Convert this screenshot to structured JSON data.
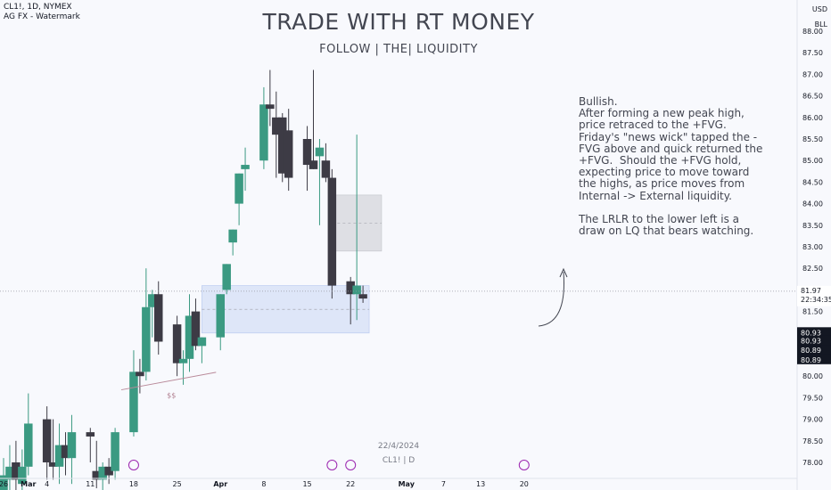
{
  "header": {
    "symbol_line": "CL1!, 1D, NYMEX",
    "indicator_line": "AG FX - Watermark"
  },
  "watermark": {
    "title": "TRADE WITH RT MONEY",
    "subtitle": "FOLLOW   |   THE|   LIQUIDITY"
  },
  "price_scale": {
    "currency": "USD",
    "unit": "BLL",
    "current_price": "81.97",
    "countdown": "22:34:35",
    "right_labels": [
      "80.93",
      "80.93",
      "80.89",
      "80.89"
    ]
  },
  "bottom_stamp": {
    "date": "22/4/2024",
    "symbol": "CL1! | D"
  },
  "annotation": {
    "text": "Bullish.\nAfter forming a new peak high, price retraced to the +FVG.\nFriday's \"news wick\" tapped the -FVG above and quick returned the  +FVG.  Should the +FVG hold, expecting price to move toward the highs, as price moves from Internal -> External liquidity.\n\nThe LRLR to the lower left is a draw on LQ that bears watching.",
    "trendline_label": "$$"
  },
  "colors": {
    "bull": "#26a69a",
    "bull_body": "#3b9a82",
    "bear": "#3d3b45",
    "fvg_bull": "#c9d7f4",
    "fvg_bear": "#d3d4d8",
    "background": "#f8f9fd",
    "text": "#131722",
    "muted": "#787b86"
  },
  "chart_data": {
    "type": "candlestick",
    "y_axis": {
      "min": 77.7,
      "max": 88.1,
      "ticks": [
        "78.00",
        "78.50",
        "79.00",
        "79.50",
        "80.00",
        "80.50",
        "81.00",
        "81.50",
        "82.00",
        "82.50",
        "83.00",
        "83.50",
        "84.00",
        "84.50",
        "85.00",
        "85.50",
        "86.00",
        "86.50",
        "87.00",
        "87.50",
        "88.00"
      ]
    },
    "x_axis": {
      "labels": [
        "26",
        "Mar",
        "4",
        "11",
        "18",
        "25",
        "Apr",
        "8",
        "15",
        "22",
        "May",
        "7",
        "13",
        "20"
      ]
    },
    "candles": [
      {
        "date": "2024-02-26",
        "o": 77.2,
        "h": 78.1,
        "l": 76.9,
        "c": 77.7
      },
      {
        "date": "2024-02-27",
        "o": 77.6,
        "h": 78.4,
        "l": 77.2,
        "c": 77.9
      },
      {
        "date": "2024-02-28",
        "o": 78.0,
        "h": 78.5,
        "l": 77.3,
        "c": 77.6
      },
      {
        "date": "2024-02-29",
        "o": 77.5,
        "h": 78.3,
        "l": 77.0,
        "c": 77.9
      },
      {
        "date": "2024-03-01",
        "o": 77.9,
        "h": 79.6,
        "l": 77.7,
        "c": 78.9
      },
      {
        "date": "2024-03-04",
        "o": 79.0,
        "h": 79.3,
        "l": 77.6,
        "c": 78.0
      },
      {
        "date": "2024-03-05",
        "o": 78.0,
        "h": 79.0,
        "l": 77.6,
        "c": 77.9
      },
      {
        "date": "2024-03-06",
        "o": 77.9,
        "h": 78.9,
        "l": 77.5,
        "c": 78.4
      },
      {
        "date": "2024-03-07",
        "o": 78.4,
        "h": 78.7,
        "l": 77.7,
        "c": 78.1
      },
      {
        "date": "2024-03-08",
        "o": 78.1,
        "h": 79.1,
        "l": 77.5,
        "c": 78.7
      },
      {
        "date": "2024-03-11",
        "o": 78.7,
        "h": 78.8,
        "l": 78.0,
        "c": 78.6
      },
      {
        "date": "2024-03-12",
        "o": 77.8,
        "h": 78.5,
        "l": 77.4,
        "c": 77.6
      },
      {
        "date": "2024-03-13",
        "o": 77.6,
        "h": 78.0,
        "l": 77.3,
        "c": 77.9
      },
      {
        "date": "2024-03-14",
        "o": 77.9,
        "h": 78.1,
        "l": 77.5,
        "c": 77.7
      },
      {
        "date": "2024-03-15",
        "o": 77.8,
        "h": 78.8,
        "l": 77.6,
        "c": 78.7
      },
      {
        "date": "2024-03-18",
        "o": 78.7,
        "h": 80.6,
        "l": 78.6,
        "c": 80.1
      },
      {
        "date": "2024-03-19",
        "o": 80.1,
        "h": 80.4,
        "l": 79.6,
        "c": 80.0
      },
      {
        "date": "2024-03-20",
        "o": 80.1,
        "h": 82.5,
        "l": 79.9,
        "c": 81.6
      },
      {
        "date": "2024-03-21",
        "o": 81.6,
        "h": 82.0,
        "l": 80.9,
        "c": 81.9
      },
      {
        "date": "2024-03-22",
        "o": 81.9,
        "h": 82.2,
        "l": 80.5,
        "c": 80.8
      },
      {
        "date": "2024-03-25",
        "o": 81.2,
        "h": 81.4,
        "l": 80.0,
        "c": 80.3
      },
      {
        "date": "2024-03-26",
        "o": 80.3,
        "h": 80.6,
        "l": 79.8,
        "c": 80.4
      },
      {
        "date": "2024-03-27",
        "o": 80.4,
        "h": 81.9,
        "l": 80.1,
        "c": 81.4
      },
      {
        "date": "2024-03-28",
        "o": 81.5,
        "h": 81.8,
        "l": 80.6,
        "c": 80.7
      },
      {
        "date": "2024-03-29",
        "o": 80.7,
        "h": 80.9,
        "l": 80.3,
        "c": 80.9
      },
      {
        "date": "2024-04-01",
        "o": 80.9,
        "h": 81.9,
        "l": 80.6,
        "c": 81.9
      },
      {
        "date": "2024-04-02",
        "o": 82.0,
        "h": 82.6,
        "l": 81.9,
        "c": 82.6
      },
      {
        "date": "2024-04-03",
        "o": 83.1,
        "h": 83.4,
        "l": 82.8,
        "c": 83.4
      },
      {
        "date": "2024-04-04",
        "o": 84.0,
        "h": 84.7,
        "l": 83.5,
        "c": 84.7
      },
      {
        "date": "2024-04-05",
        "o": 84.8,
        "h": 85.3,
        "l": 84.3,
        "c": 84.9
      },
      {
        "date": "2024-04-08",
        "o": 85.0,
        "h": 86.7,
        "l": 84.8,
        "c": 86.3
      },
      {
        "date": "2024-04-09",
        "o": 86.3,
        "h": 87.1,
        "l": 85.8,
        "c": 86.2
      },
      {
        "date": "2024-04-10",
        "o": 86.0,
        "h": 86.6,
        "l": 84.6,
        "c": 85.6
      },
      {
        "date": "2024-04-11",
        "o": 86.0,
        "h": 86.1,
        "l": 84.5,
        "c": 84.7
      },
      {
        "date": "2024-04-12",
        "o": 85.7,
        "h": 86.2,
        "l": 84.3,
        "c": 84.6
      },
      {
        "date": "2024-04-15",
        "o": 85.5,
        "h": 85.8,
        "l": 84.3,
        "c": 84.9
      },
      {
        "date": "2024-04-16",
        "o": 85.0,
        "h": 87.1,
        "l": 84.8,
        "c": 84.8
      },
      {
        "date": "2024-04-17",
        "o": 85.1,
        "h": 85.5,
        "l": 83.5,
        "c": 85.3
      },
      {
        "date": "2024-04-18",
        "o": 85.0,
        "h": 85.4,
        "l": 84.5,
        "c": 84.6
      },
      {
        "date": "2024-04-19",
        "o": 84.6,
        "h": 84.8,
        "l": 81.8,
        "c": 82.1
      },
      {
        "date": "2024-04-22",
        "o": 82.2,
        "h": 82.3,
        "l": 81.2,
        "c": 81.9
      },
      {
        "date": "2024-04-23",
        "o": 81.9,
        "h": 85.6,
        "l": 81.3,
        "c": 82.1
      },
      {
        "date": "2024-04-24",
        "o": 81.9,
        "h": 82.1,
        "l": 81.7,
        "c": 81.8
      }
    ],
    "zones": [
      {
        "name": "+FVG",
        "from_date": "2024-03-29",
        "to_date": "2024-04-25",
        "top": 82.1,
        "bottom": 81.0
      },
      {
        "name": "-FVG",
        "from_date": "2024-04-19",
        "to_date": "2024-04-27",
        "top": 84.2,
        "bottom": 82.9
      }
    ],
    "trendline": {
      "from_date": "2024-03-18",
      "from_price": 79.6,
      "to_date": "2024-03-31",
      "to_price": 79.8
    }
  }
}
